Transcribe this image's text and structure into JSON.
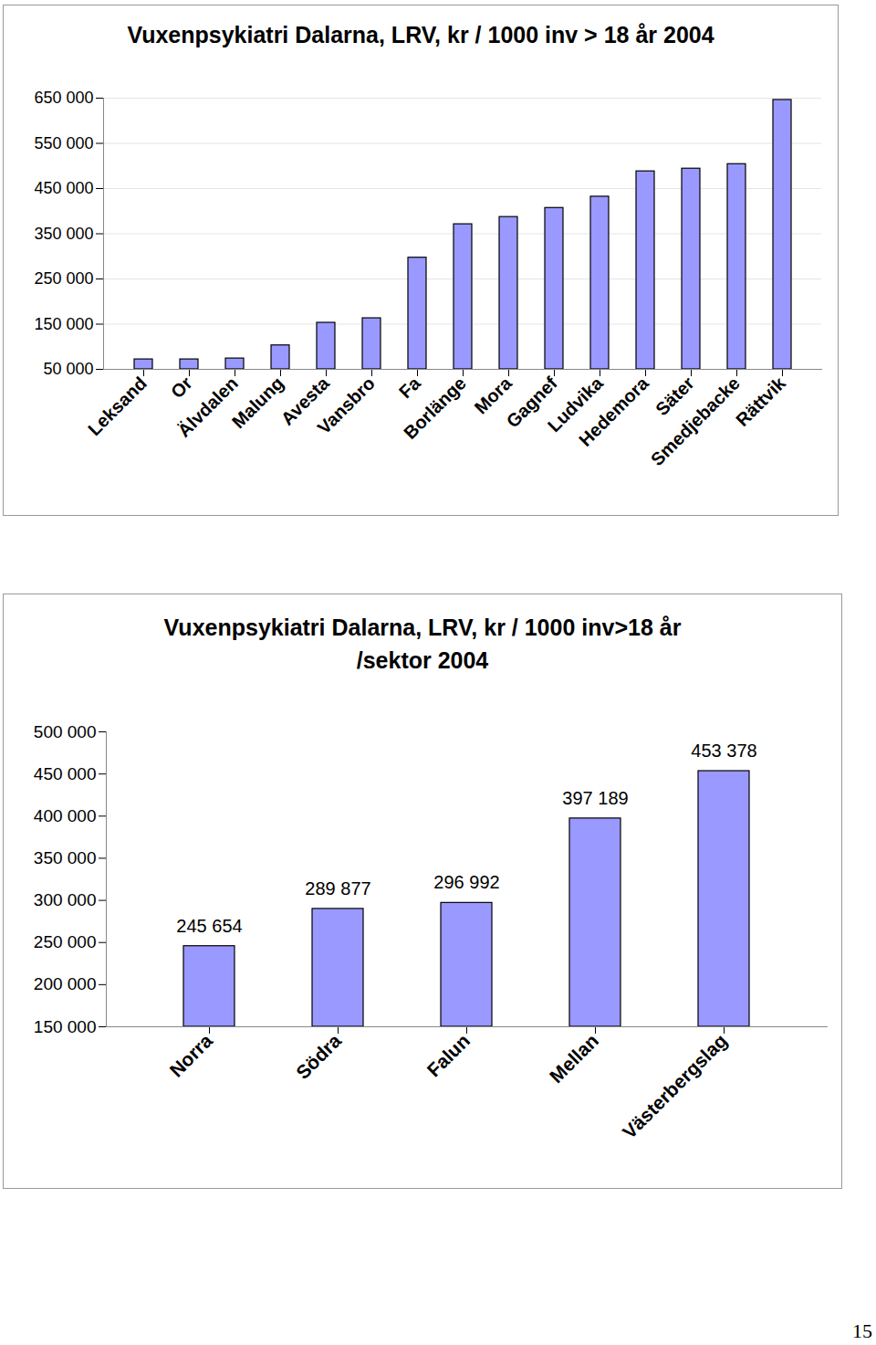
{
  "chart_data": [
    {
      "type": "bar",
      "title": "Vuxenpsykiatri Dalarna, LRV, kr / 1000 inv > 18 år 2004",
      "categories": [
        "Leksand",
        "Or",
        "Älvdalen",
        "Malung",
        "Avesta",
        "Vansbro",
        "Fa",
        "Borlänge",
        "Mora",
        "Gagnef",
        "Ludvika",
        "Hedemora",
        "Säter",
        "Smedjebacke",
        "Rättvik"
      ],
      "values": [
        72000,
        72000,
        74000,
        103000,
        153000,
        163000,
        297000,
        371000,
        387000,
        407000,
        432000,
        488000,
        494000,
        504000,
        646000
      ],
      "color": "#9999ff",
      "ylim": [
        50000,
        650000
      ],
      "yticks": [
        {
          "value": 50000,
          "label": "50 000"
        },
        {
          "value": 150000,
          "label": "150 000"
        },
        {
          "value": 250000,
          "label": "250 000"
        },
        {
          "value": 350000,
          "label": "350 000"
        },
        {
          "value": 450000,
          "label": "450 000"
        },
        {
          "value": 550000,
          "label": "550 000"
        },
        {
          "value": 650000,
          "label": "650 000"
        }
      ],
      "grid": true
    },
    {
      "type": "bar",
      "title": "Vuxenpsykiatri Dalarna, LRV, kr / 1000 inv>18 år\n/sektor  2004",
      "categories": [
        "Norra",
        "Södra",
        "Falun",
        "Mellan",
        "Västerbergslag"
      ],
      "values": [
        245654,
        289877,
        296992,
        397189,
        453378
      ],
      "value_labels": [
        "245 654",
        "289 877",
        "296 992",
        "397 189",
        "453 378"
      ],
      "data_labels": true,
      "color": "#9999ff",
      "ylim": [
        150000,
        500000
      ],
      "yticks": [
        {
          "value": 150000,
          "label": "150 000"
        },
        {
          "value": 200000,
          "label": "200 000"
        },
        {
          "value": 250000,
          "label": "250 000"
        },
        {
          "value": 300000,
          "label": "300 000"
        },
        {
          "value": 350000,
          "label": "350 000"
        },
        {
          "value": 400000,
          "label": "400 000"
        },
        {
          "value": 450000,
          "label": "450 000"
        },
        {
          "value": 500000,
          "label": "500 000"
        }
      ],
      "grid": false
    }
  ],
  "page_number": "15"
}
